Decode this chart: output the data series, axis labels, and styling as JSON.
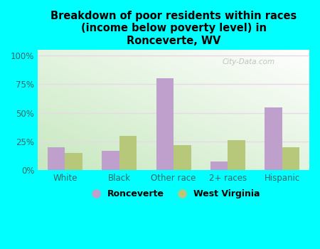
{
  "title": "Breakdown of poor residents within races\n(income below poverty level) in\nRonceverte, WV",
  "categories": [
    "White",
    "Black",
    "Other race",
    "2+ races",
    "Hispanic"
  ],
  "ronceverte": [
    20,
    17,
    80,
    8,
    55
  ],
  "west_virginia": [
    15,
    30,
    22,
    26,
    20
  ],
  "bar_color_ronceverte": "#bf9fcc",
  "bar_color_wv": "#b8c87a",
  "background_outer": "#00ffff",
  "grid_color": "#e8d8e8",
  "yticks": [
    0,
    25,
    50,
    75,
    100
  ],
  "ytick_labels": [
    "0%",
    "25%",
    "50%",
    "75%",
    "100%"
  ],
  "legend_ronceverte": "Ronceverte",
  "legend_wv": "West Virginia",
  "bar_width": 0.32,
  "watermark": "City-Data.com",
  "tick_color": "#336666",
  "title_color": "#000000"
}
